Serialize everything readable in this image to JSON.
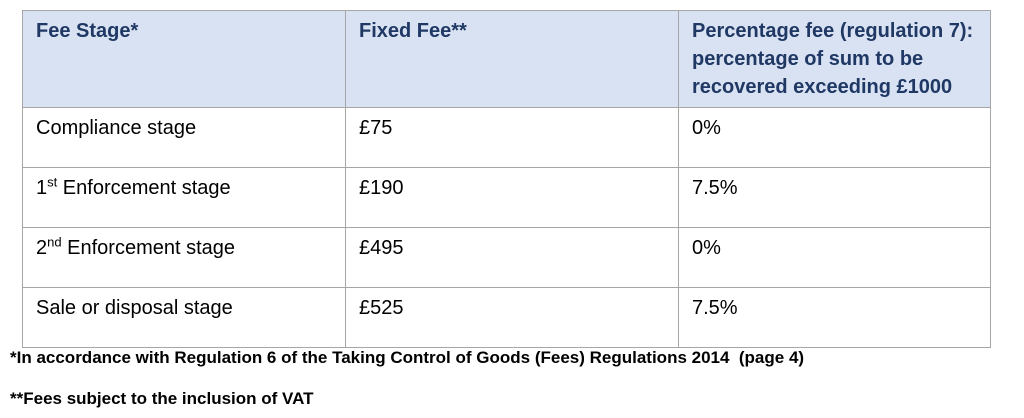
{
  "colors": {
    "header_bg": "#d9e2f3",
    "header_text": "#1f3864",
    "body_text": "#000000",
    "border": "#a6a6a6"
  },
  "table": {
    "headers": {
      "stage": "Fee Stage*",
      "fixed_fee": "Fixed Fee**",
      "percentage_fee": "Percentage fee (regulation 7): percentage of sum to be recovered exceeding £1000"
    },
    "rows": [
      {
        "stage_base": "Compliance stage",
        "stage_sup": "",
        "stage_rest": "",
        "fixed_fee": "£75",
        "percentage_fee": "0%"
      },
      {
        "stage_base": "1",
        "stage_sup": "st",
        "stage_rest": " Enforcement stage",
        "fixed_fee": "£190",
        "percentage_fee": "7.5%"
      },
      {
        "stage_base": "2",
        "stage_sup": "nd",
        "stage_rest": " Enforcement stage",
        "fixed_fee": "£495",
        "percentage_fee": "0%"
      },
      {
        "stage_base": "Sale or disposal stage",
        "stage_sup": "",
        "stage_rest": "",
        "fixed_fee": "£525",
        "percentage_fee": "7.5%"
      }
    ]
  },
  "footnotes": {
    "regulation_note": "*In accordance with Regulation 6 of the Taking Control of Goods (Fees) Regulations 2014  (page 4)",
    "vat_note": "**Fees subject to the inclusion of VAT"
  }
}
